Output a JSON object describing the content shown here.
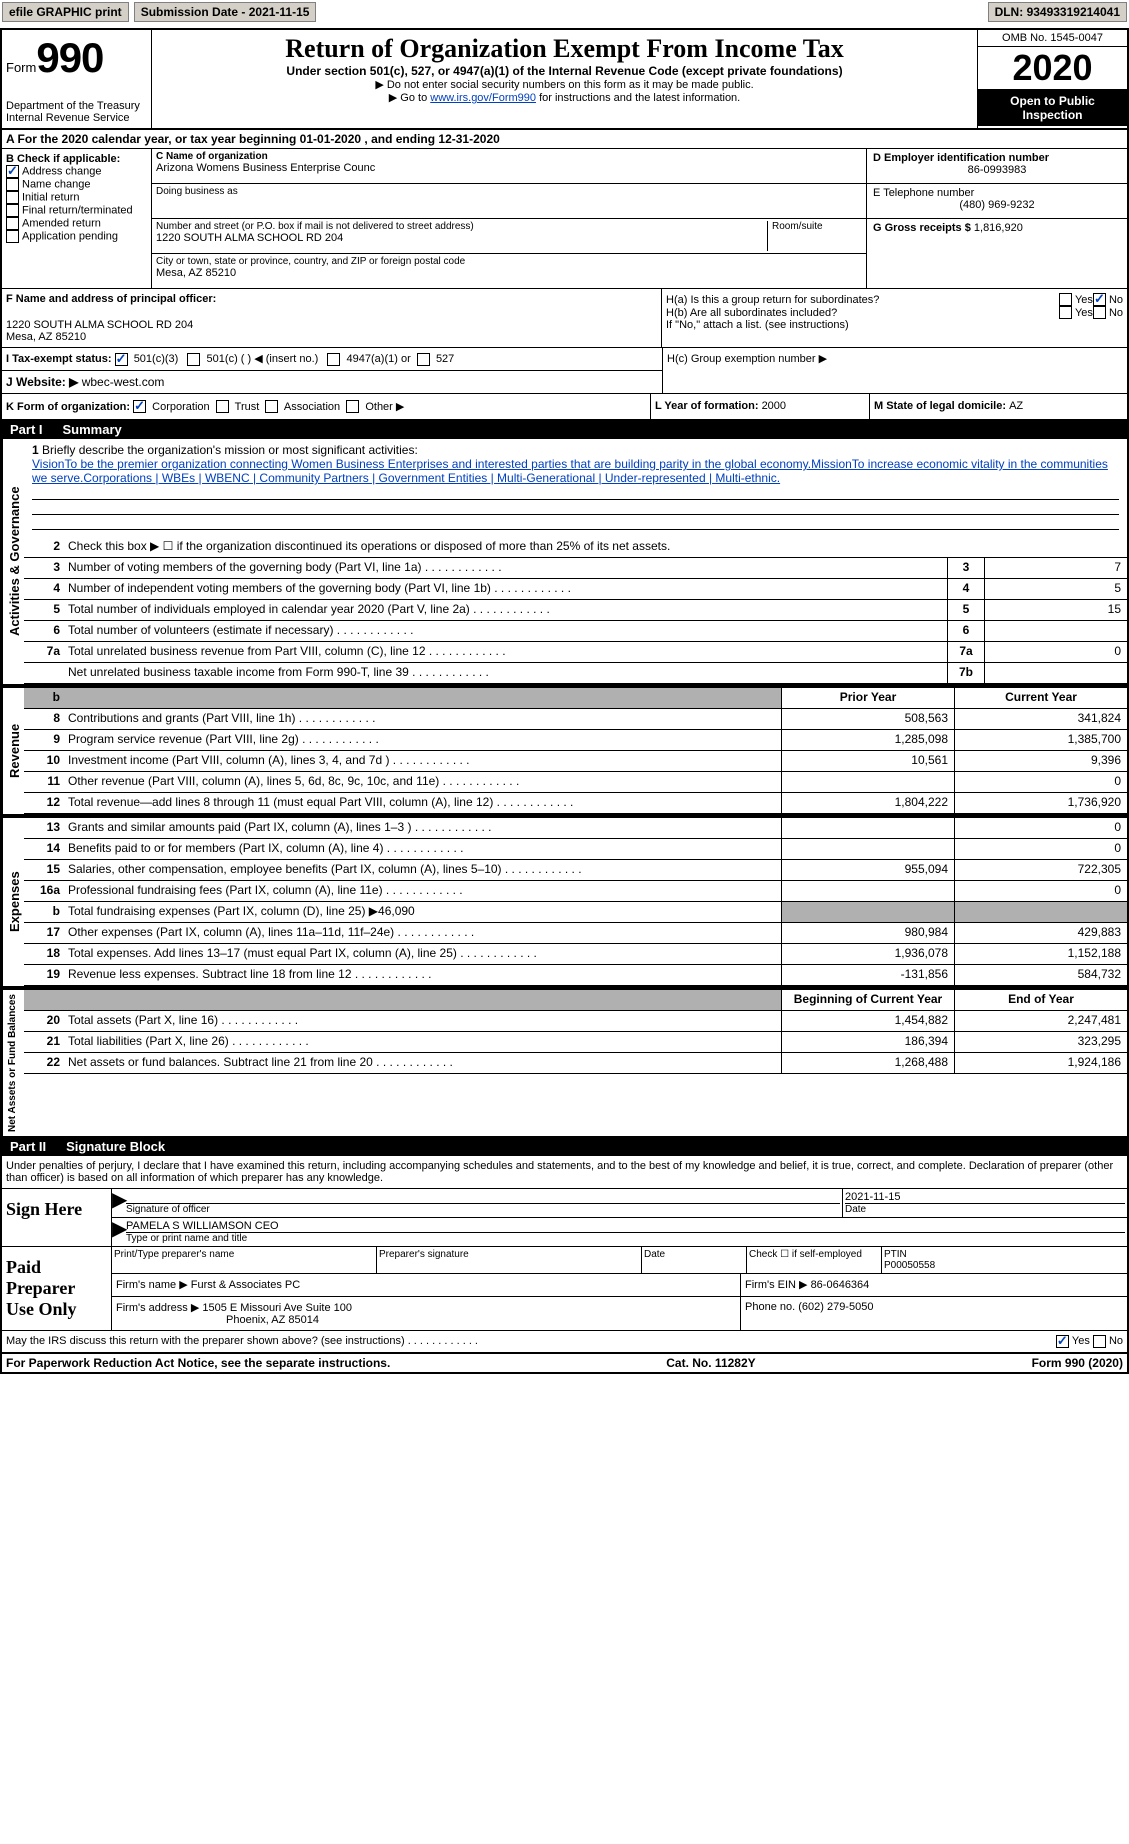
{
  "topbar": {
    "efile": "efile GRAPHIC print",
    "sub_label": "Submission Date - ",
    "sub_date": "2021-11-15",
    "dln_label": "DLN: ",
    "dln": "93493319214041"
  },
  "header": {
    "form_word": "Form",
    "form_num": "990",
    "dept": "Department of the Treasury",
    "irs": "Internal Revenue Service",
    "title": "Return of Organization Exempt From Income Tax",
    "subtitle": "Under section 501(c), 527, or 4947(a)(1) of the Internal Revenue Code (except private foundations)",
    "note1": "▶ Do not enter social security numbers on this form as it may be made public.",
    "note2_pre": "▶ Go to ",
    "note2_link": "www.irs.gov/Form990",
    "note2_post": " for instructions and the latest information.",
    "omb": "OMB No. 1545-0047",
    "year": "2020",
    "open": "Open to Public Inspection"
  },
  "sectionA": {
    "text": "A  For the 2020 calendar year, or tax year beginning ",
    "begin": "01-01-2020",
    "mid": " , and ending ",
    "end": "12-31-2020"
  },
  "sectionB": {
    "label": "B Check if applicable:",
    "items": [
      "Address change",
      "Name change",
      "Initial return",
      "Final return/terminated",
      "Amended return",
      "Application pending"
    ],
    "checked_index": 0
  },
  "sectionC": {
    "name_label": "C Name of organization",
    "name": "Arizona Womens Business Enterprise Counc",
    "dba_label": "Doing business as",
    "addr_label": "Number and street (or P.O. box if mail is not delivered to street address)",
    "room_label": "Room/suite",
    "addr": "1220 SOUTH ALMA SCHOOL RD 204",
    "city_label": "City or town, state or province, country, and ZIP or foreign postal code",
    "city": "Mesa, AZ  85210"
  },
  "sectionD": {
    "label": "D Employer identification number",
    "ein": "86-0993983"
  },
  "sectionE": {
    "label": "E Telephone number",
    "phone": "(480) 969-9232"
  },
  "sectionG": {
    "label": "G Gross receipts $ ",
    "amount": "1,816,920"
  },
  "sectionF": {
    "label": "F Name and address of principal officer:",
    "addr1": "1220 SOUTH ALMA SCHOOL RD 204",
    "addr2": "Mesa, AZ  85210"
  },
  "sectionH": {
    "ha": "H(a)  Is this a group return for subordinates?",
    "hb": "H(b)  Are all subordinates included?",
    "hb_note": "If \"No,\" attach a list. (see instructions)",
    "hc": "H(c)  Group exemption number ▶",
    "yes": "Yes",
    "no": "No"
  },
  "sectionI": {
    "label": "I  Tax-exempt status:",
    "opt1": "501(c)(3)",
    "opt2": "501(c) (  ) ◀ (insert no.)",
    "opt3": "4947(a)(1) or",
    "opt4": "527"
  },
  "sectionJ": {
    "label": "J  Website: ▶",
    "site": " wbec-west.com"
  },
  "sectionK": {
    "label": "K Form of organization:",
    "opts": [
      "Corporation",
      "Trust",
      "Association",
      "Other ▶"
    ]
  },
  "sectionL": {
    "label": "L Year of formation: ",
    "year": "2000"
  },
  "sectionM": {
    "label": "M State of legal domicile: ",
    "state": "AZ"
  },
  "part1": {
    "label": "Part I",
    "title": "Summary"
  },
  "mission": {
    "num": "1",
    "label": "Briefly describe the organization's mission or most significant activities:",
    "text": "VisionTo be the premier organization connecting Women Business Enterprises and interested parties that are building parity in the global economy.MissionTo increase economic vitality in the communities we serve.Corporations | WBEs | WBENC | Community Partners | Government Entities | Multi-Generational | Under-represented | Multi-ethnic."
  },
  "governance_label": "Activities & Governance",
  "revenue_label": "Revenue",
  "expenses_label": "Expenses",
  "netassets_label": "Net Assets or Fund Balances",
  "gov_rows": [
    {
      "n": "2",
      "d": "Check this box ▶ ☐ if the organization discontinued its operations or disposed of more than 25% of its net assets."
    },
    {
      "n": "3",
      "d": "Number of voting members of the governing body (Part VI, line 1a)",
      "box": "3",
      "v": "7"
    },
    {
      "n": "4",
      "d": "Number of independent voting members of the governing body (Part VI, line 1b)",
      "box": "4",
      "v": "5"
    },
    {
      "n": "5",
      "d": "Total number of individuals employed in calendar year 2020 (Part V, line 2a)",
      "box": "5",
      "v": "15"
    },
    {
      "n": "6",
      "d": "Total number of volunteers (estimate if necessary)",
      "box": "6",
      "v": ""
    },
    {
      "n": "7a",
      "d": "Total unrelated business revenue from Part VIII, column (C), line 12",
      "box": "7a",
      "v": "0"
    },
    {
      "n": "",
      "d": "Net unrelated business taxable income from Form 990-T, line 39",
      "box": "7b",
      "v": ""
    }
  ],
  "col_headers": {
    "prior": "Prior Year",
    "current": "Current Year"
  },
  "rev_rows": [
    {
      "n": "8",
      "d": "Contributions and grants (Part VIII, line 1h)",
      "p": "508,563",
      "c": "341,824"
    },
    {
      "n": "9",
      "d": "Program service revenue (Part VIII, line 2g)",
      "p": "1,285,098",
      "c": "1,385,700"
    },
    {
      "n": "10",
      "d": "Investment income (Part VIII, column (A), lines 3, 4, and 7d )",
      "p": "10,561",
      "c": "9,396"
    },
    {
      "n": "11",
      "d": "Other revenue (Part VIII, column (A), lines 5, 6d, 8c, 9c, 10c, and 11e)",
      "p": "",
      "c": "0"
    },
    {
      "n": "12",
      "d": "Total revenue—add lines 8 through 11 (must equal Part VIII, column (A), line 12)",
      "p": "1,804,222",
      "c": "1,736,920"
    }
  ],
  "exp_rows": [
    {
      "n": "13",
      "d": "Grants and similar amounts paid (Part IX, column (A), lines 1–3 )",
      "p": "",
      "c": "0"
    },
    {
      "n": "14",
      "d": "Benefits paid to or for members (Part IX, column (A), line 4)",
      "p": "",
      "c": "0"
    },
    {
      "n": "15",
      "d": "Salaries, other compensation, employee benefits (Part IX, column (A), lines 5–10)",
      "p": "955,094",
      "c": "722,305"
    },
    {
      "n": "16a",
      "d": "Professional fundraising fees (Part IX, column (A), line 11e)",
      "p": "",
      "c": "0"
    },
    {
      "n": "b",
      "d": "Total fundraising expenses (Part IX, column (D), line 25) ▶46,090",
      "noval": true
    },
    {
      "n": "17",
      "d": "Other expenses (Part IX, column (A), lines 11a–11d, 11f–24e)",
      "p": "980,984",
      "c": "429,883"
    },
    {
      "n": "18",
      "d": "Total expenses. Add lines 13–17 (must equal Part IX, column (A), line 25)",
      "p": "1,936,078",
      "c": "1,152,188"
    },
    {
      "n": "19",
      "d": "Revenue less expenses. Subtract line 18 from line 12",
      "p": "-131,856",
      "c": "584,732"
    }
  ],
  "na_headers": {
    "begin": "Beginning of Current Year",
    "end": "End of Year"
  },
  "na_rows": [
    {
      "n": "20",
      "d": "Total assets (Part X, line 16)",
      "p": "1,454,882",
      "c": "2,247,481"
    },
    {
      "n": "21",
      "d": "Total liabilities (Part X, line 26)",
      "p": "186,394",
      "c": "323,295"
    },
    {
      "n": "22",
      "d": "Net assets or fund balances. Subtract line 21 from line 20",
      "p": "1,268,488",
      "c": "1,924,186"
    }
  ],
  "part2": {
    "label": "Part II",
    "title": "Signature Block"
  },
  "sig": {
    "penalties": "Under penalties of perjury, I declare that I have examined this return, including accompanying schedules and statements, and to the best of my knowledge and belief, it is true, correct, and complete. Declaration of preparer (other than officer) is based on all information of which preparer has any knowledge.",
    "sign_here": "Sign Here",
    "sig_officer": "Signature of officer",
    "date": "Date",
    "sig_date": "2021-11-15",
    "name_title": "PAMELA S WILLIAMSON  CEO",
    "type_name": "Type or print name and title",
    "paid": "Paid Preparer Use Only",
    "print_name": "Print/Type preparer's name",
    "prep_sig": "Preparer's signature",
    "date2": "Date",
    "check_self": "Check ☐ if self-employed",
    "ptin_label": "PTIN",
    "ptin": "P00050558",
    "firm_name_label": "Firm's name    ▶ ",
    "firm_name": "Furst & Associates PC",
    "firm_ein_label": "Firm's EIN ▶ ",
    "firm_ein": "86-0646364",
    "firm_addr_label": "Firm's address ▶ ",
    "firm_addr1": "1505 E Missouri Ave Suite 100",
    "firm_addr2": "Phoenix, AZ  85014",
    "phone_label": "Phone no. ",
    "phone": "(602) 279-5050",
    "discuss": "May the IRS discuss this return with the preparer shown above? (see instructions)"
  },
  "footer": {
    "left": "For Paperwork Reduction Act Notice, see the separate instructions.",
    "mid": "Cat. No. 11282Y",
    "right": "Form 990 (2020)"
  }
}
